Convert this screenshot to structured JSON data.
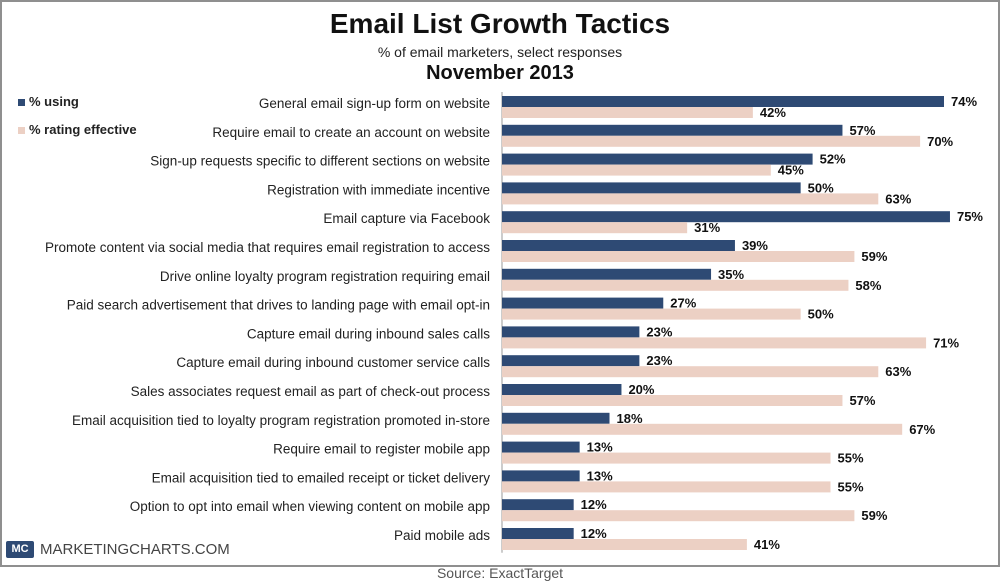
{
  "header": {
    "title": "Email List Growth Tactics",
    "subtitle": "% of email marketers, select responses",
    "date": "November 2013"
  },
  "footer": {
    "logo": "MC",
    "site": "MARKETINGCHARTS.COM",
    "source": "Source: ExactTarget"
  },
  "colors": {
    "using": "#2e4a74",
    "effective": "#ecd0c4"
  },
  "chart_data": {
    "type": "bar",
    "orientation": "horizontal",
    "title": "Email List Growth Tactics",
    "subtitle": "% of email marketers, select responses",
    "xlim": [
      0,
      80
    ],
    "grid": false,
    "legend_position": "top-left",
    "value_suffix": "%",
    "categories": [
      "General email sign-up form on website",
      "Require email to create an account on website",
      "Sign-up requests specific to different sections on website",
      "Registration with immediate incentive",
      "Email capture via Facebook",
      "Promote content via social media that requires email registration to access",
      "Drive online loyalty program registration requiring email",
      "Paid search advertisement that drives to landing page with email opt-in",
      "Capture email during inbound sales calls",
      "Capture email during inbound customer service calls",
      "Sales associates request email as part of check-out process",
      "Email acquisition tied to loyalty program registration promoted in-store",
      "Require email to register mobile app",
      "Email acquisition tied to emailed receipt or ticket delivery",
      "Option to opt into email when viewing content on mobile app",
      "Paid mobile ads"
    ],
    "series": [
      {
        "name": "% using",
        "values": [
          74,
          57,
          52,
          50,
          75,
          39,
          35,
          27,
          23,
          23,
          20,
          18,
          13,
          13,
          12,
          12
        ]
      },
      {
        "name": "% rating effective",
        "values": [
          42,
          70,
          45,
          63,
          31,
          59,
          58,
          50,
          71,
          63,
          57,
          67,
          55,
          55,
          59,
          41
        ]
      }
    ]
  }
}
